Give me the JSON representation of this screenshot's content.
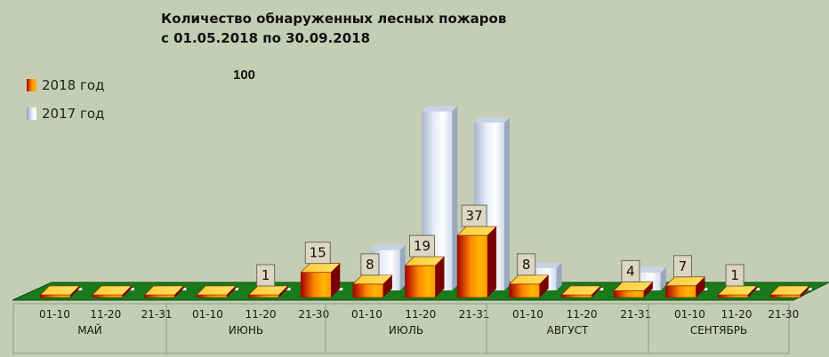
{
  "title_line1": "Количество обнаруженных лесных пожаров",
  "title_line2": "с 01.05.2018  по  30.09.2018",
  "note": "100",
  "chart_data": {
    "type": "bar",
    "categories": [
      "01-10",
      "11-20",
      "21-31",
      "01-10",
      "11-20",
      "21-30",
      "01-10",
      "11-20",
      "21-31",
      "01-10",
      "11-20",
      "21-31",
      "01-10",
      "11-20",
      "21-30"
    ],
    "groups": [
      {
        "label": "МАЙ",
        "count": 3
      },
      {
        "label": "ИЮНЬ",
        "count": 3
      },
      {
        "label": "ИЮЛЬ",
        "count": 3
      },
      {
        "label": "АВГУСТ",
        "count": 3
      },
      {
        "label": "СЕНТЯБРЬ",
        "count": 3
      }
    ],
    "series": [
      {
        "name": "2018 год",
        "values": [
          0,
          0,
          0,
          0,
          1,
          15,
          8,
          19,
          37,
          8,
          0,
          4,
          7,
          1,
          0
        ],
        "labels": [
          "",
          "",
          "",
          "",
          "1",
          "15",
          "8",
          "19",
          "37",
          "8",
          "",
          "4",
          "7",
          "1",
          ""
        ]
      },
      {
        "name": "2017 год",
        "values": [
          0,
          0,
          0,
          0,
          0,
          0,
          18,
          80,
          75,
          10,
          0,
          8,
          0,
          0,
          0
        ]
      }
    ],
    "ylim": [
      0,
      100
    ],
    "legend": "left",
    "colors": {
      "s2018_dark": "#b40000",
      "s2018_light": "#ffb000",
      "s2017": "#dfe7f3",
      "floor": "#1a7a1a"
    }
  }
}
